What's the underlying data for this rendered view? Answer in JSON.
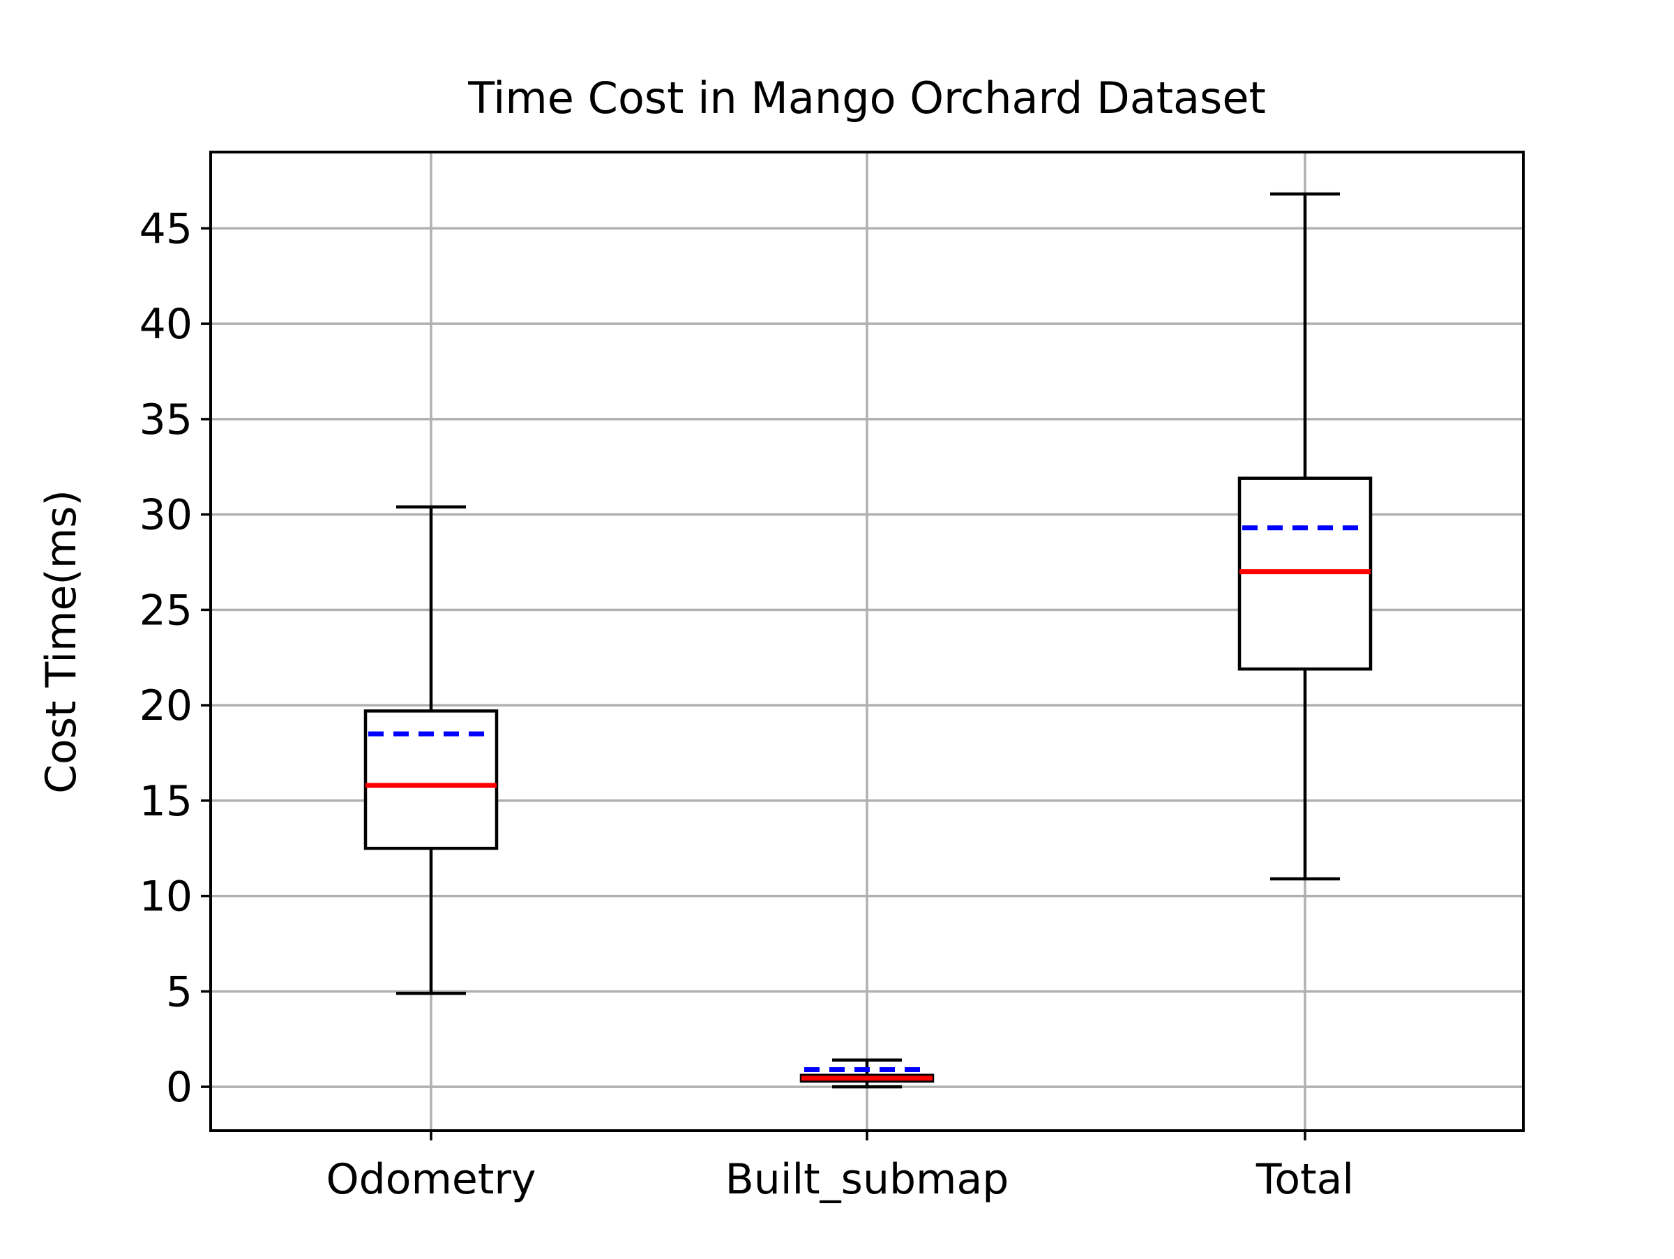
{
  "chart_data": {
    "type": "boxplot",
    "title": "Time Cost in Mango Orchard Dataset",
    "xlabel": "",
    "ylabel": "Cost Time(ms)",
    "ylim": [
      -2.3,
      49
    ],
    "yticks": [
      0,
      5,
      10,
      15,
      20,
      25,
      30,
      35,
      40,
      45
    ],
    "categories": [
      "Odometry",
      "Built_submap",
      "Total"
    ],
    "grid": true,
    "boxes": [
      {
        "category": "Odometry",
        "whisker_low": 4.9,
        "q1": 12.5,
        "median": 15.8,
        "mean": 18.5,
        "q3": 19.7,
        "whisker_high": 30.4
      },
      {
        "category": "Built_submap",
        "whisker_low": 0.0,
        "q1": 0.3,
        "median": 0.45,
        "mean": 0.9,
        "q3": 0.6,
        "whisker_high": 1.4
      },
      {
        "category": "Total",
        "whisker_low": 10.9,
        "q1": 21.9,
        "median": 27.0,
        "mean": 29.3,
        "q3": 31.9,
        "whisker_high": 46.8
      }
    ],
    "colors": {
      "box": "#000000",
      "median": "#ff0000",
      "mean": "#0000ff",
      "grid": "#b0b0b0"
    }
  }
}
